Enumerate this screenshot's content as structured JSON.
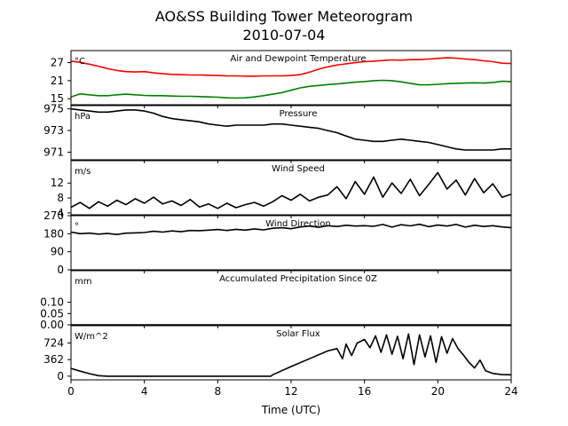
{
  "figure": {
    "title_line1": "AO&SS Building Tower Meteorogram",
    "title_line2": "2010-07-04",
    "xlabel": "Time (UTC)"
  },
  "chart_data": [
    {
      "type": "line",
      "title": "Air and Dewpoint Temperature",
      "unit": "°C",
      "xlim": [
        0,
        24
      ],
      "ylim": [
        13,
        31
      ],
      "yticks": [
        15,
        21,
        27
      ],
      "ytick_labels": [
        "15",
        "21",
        "27"
      ],
      "xticks": [
        0,
        4,
        8,
        12,
        16,
        20,
        24
      ],
      "xtick_labels": [
        "0",
        "4",
        "8",
        "12",
        "16",
        "20",
        "24"
      ],
      "series": [
        {
          "color": "#ff0000",
          "x": [
            0,
            0.5,
            1,
            1.5,
            2,
            2.5,
            3,
            3.5,
            4,
            4.5,
            5,
            5.5,
            6,
            6.5,
            7,
            7.5,
            8,
            8.5,
            9,
            9.5,
            10,
            10.5,
            11,
            11.5,
            12,
            12.5,
            13,
            13.5,
            14,
            14.5,
            15,
            15.5,
            16,
            16.5,
            17,
            17.5,
            18,
            18.5,
            19,
            19.5,
            20,
            20.5,
            21,
            21.5,
            22,
            22.5,
            23,
            23.5,
            24
          ],
          "values": [
            27.5,
            27.1,
            26.5,
            25.8,
            25.0,
            24.4,
            24.0,
            23.9,
            24.0,
            23.6,
            23.3,
            23.1,
            23.0,
            22.9,
            22.9,
            22.8,
            22.7,
            22.6,
            22.6,
            22.5,
            22.5,
            22.6,
            22.6,
            22.6,
            22.7,
            23.0,
            23.8,
            24.8,
            25.6,
            26.2,
            26.6,
            27.0,
            27.3,
            27.5,
            27.7,
            27.9,
            27.8,
            28.0,
            28.0,
            28.2,
            28.4,
            28.6,
            28.5,
            28.2,
            28.0,
            27.6,
            27.3,
            26.8,
            26.7
          ]
        },
        {
          "color": "#008000",
          "x": [
            0,
            0.5,
            1,
            1.5,
            2,
            2.5,
            3,
            3.5,
            4,
            4.5,
            5,
            5.5,
            6,
            6.5,
            7,
            7.5,
            8,
            8.5,
            9,
            9.5,
            10,
            10.5,
            11,
            11.5,
            12,
            12.5,
            13,
            13.5,
            14,
            14.5,
            15,
            15.5,
            16,
            16.5,
            17,
            17.5,
            18,
            18.5,
            19,
            19.5,
            20,
            20.5,
            21,
            21.5,
            22,
            22.5,
            23,
            23.5,
            24
          ],
          "values": [
            15.6,
            16.6,
            16.3,
            16.0,
            16.0,
            16.3,
            16.5,
            16.3,
            16.1,
            16.0,
            16.0,
            15.9,
            15.8,
            15.8,
            15.7,
            15.6,
            15.5,
            15.3,
            15.2,
            15.3,
            15.6,
            16.0,
            16.5,
            17.0,
            17.8,
            18.6,
            19.1,
            19.4,
            19.7,
            19.9,
            20.2,
            20.5,
            20.7,
            21.0,
            21.1,
            21.0,
            20.6,
            20.1,
            19.6,
            19.6,
            19.8,
            20.0,
            20.1,
            20.2,
            20.3,
            20.2,
            20.4,
            20.8,
            20.7
          ]
        }
      ]
    },
    {
      "type": "line",
      "title": "Pressure",
      "unit": "hPa",
      "xlim": [
        0,
        24
      ],
      "ylim": [
        970.3,
        975.3
      ],
      "yticks": [
        971,
        973,
        975
      ],
      "ytick_labels": [
        "971",
        "973",
        "975"
      ],
      "series": [
        {
          "color": "#000000",
          "x": [
            0,
            0.5,
            1,
            1.5,
            2,
            2.5,
            3,
            3.5,
            4,
            4.5,
            5,
            5.5,
            6,
            6.5,
            7,
            7.5,
            8,
            8.5,
            9,
            9.5,
            10,
            10.5,
            11,
            11.5,
            12,
            12.5,
            13,
            13.5,
            14,
            14.5,
            15,
            15.5,
            16,
            16.5,
            17,
            17.5,
            18,
            18.5,
            19,
            19.5,
            20,
            20.5,
            21,
            21.5,
            22,
            22.5,
            23,
            23.5,
            24
          ],
          "values": [
            975.0,
            974.9,
            974.8,
            974.7,
            974.7,
            974.8,
            974.9,
            974.9,
            974.8,
            974.6,
            974.3,
            974.1,
            974.0,
            973.9,
            973.8,
            973.6,
            973.5,
            973.4,
            973.5,
            973.5,
            973.5,
            973.5,
            973.6,
            973.6,
            973.5,
            973.4,
            973.3,
            973.2,
            973.0,
            972.8,
            972.5,
            972.2,
            972.1,
            972.0,
            972.0,
            972.1,
            972.2,
            972.1,
            972.0,
            971.9,
            971.7,
            971.5,
            971.3,
            971.2,
            971.2,
            971.2,
            971.2,
            971.3,
            971.3
          ]
        }
      ]
    },
    {
      "type": "line",
      "title": "Wind Speed",
      "unit": "m/s",
      "xlim": [
        0,
        24
      ],
      "ylim": [
        3.5,
        18
      ],
      "yticks": [
        4,
        8,
        12
      ],
      "ytick_labels": [
        "4",
        "8",
        "12"
      ],
      "series": [
        {
          "color": "#000000",
          "x": [
            0,
            0.5,
            1,
            1.5,
            2,
            2.5,
            3,
            3.5,
            4,
            4.5,
            5,
            5.5,
            6,
            6.5,
            7,
            7.5,
            8,
            8.5,
            9,
            9.5,
            10,
            10.5,
            11,
            11.5,
            12,
            12.5,
            13,
            13.5,
            14,
            14.5,
            15,
            15.5,
            16,
            16.5,
            17,
            17.5,
            18,
            18.5,
            19,
            19.5,
            20,
            20.5,
            21,
            21.5,
            22,
            22.5,
            23,
            23.5,
            24
          ],
          "values": [
            5.5,
            6.8,
            5.2,
            7.0,
            5.8,
            7.4,
            6.2,
            7.8,
            6.6,
            8.2,
            6.4,
            7.2,
            6.0,
            7.6,
            5.6,
            6.4,
            5.2,
            6.6,
            5.4,
            6.2,
            6.8,
            5.8,
            7.0,
            8.6,
            7.4,
            9.0,
            7.2,
            8.2,
            8.8,
            11.0,
            7.8,
            12.4,
            9.0,
            13.6,
            8.2,
            12.0,
            9.2,
            13.0,
            8.6,
            11.6,
            14.8,
            10.4,
            12.8,
            8.8,
            13.2,
            9.4,
            11.8,
            8.2,
            9.0
          ]
        }
      ]
    },
    {
      "type": "line",
      "title": "Wind Direction",
      "unit": "°",
      "xlim": [
        0,
        24
      ],
      "ylim": [
        0,
        270
      ],
      "yticks": [
        0,
        90,
        180,
        270
      ],
      "ytick_labels": [
        "0",
        "90",
        "180",
        "270"
      ],
      "series": [
        {
          "color": "#000000",
          "x": [
            0,
            0.5,
            1,
            1.5,
            2,
            2.5,
            3,
            3.5,
            4,
            4.5,
            5,
            5.5,
            6,
            6.5,
            7,
            7.5,
            8,
            8.5,
            9,
            9.5,
            10,
            10.5,
            11,
            11.5,
            12,
            12.5,
            13,
            13.5,
            14,
            14.5,
            15,
            15.5,
            16,
            16.5,
            17,
            17.5,
            18,
            18.5,
            19,
            19.5,
            20,
            20.5,
            21,
            21.5,
            22,
            22.5,
            23,
            23.5,
            24
          ],
          "values": [
            188,
            180,
            183,
            178,
            181,
            176,
            183,
            184,
            186,
            192,
            188,
            194,
            190,
            196,
            195,
            198,
            201,
            196,
            202,
            198,
            204,
            199,
            207,
            210,
            205,
            214,
            218,
            212,
            220,
            216,
            222,
            218,
            220,
            217,
            226,
            213,
            225,
            219,
            227,
            215,
            223,
            218,
            226,
            213,
            222,
            216,
            220,
            214,
            210
          ]
        }
      ]
    },
    {
      "type": "line",
      "title": "Accumulated Precipitation Since 0Z",
      "unit": "mm",
      "xlim": [
        0,
        24
      ],
      "ylim": [
        0,
        0.24
      ],
      "yticks": [
        0,
        0.05,
        0.1
      ],
      "ytick_labels": [
        "0.00",
        "0.05",
        "0.10"
      ],
      "series": [
        {
          "color": "#000000",
          "x": [
            0,
            24
          ],
          "values": [
            0,
            0
          ]
        }
      ]
    },
    {
      "type": "line",
      "title": "Solar Flux",
      "unit": "W/m^2",
      "xlim": [
        0,
        24
      ],
      "ylim": [
        -80,
        1100
      ],
      "yticks": [
        0,
        362,
        724
      ],
      "ytick_labels": [
        "0",
        "362",
        "724"
      ],
      "series": [
        {
          "color": "#000000",
          "x": [
            0,
            0.5,
            1,
            1.5,
            2,
            3,
            4,
            6,
            8,
            10,
            10.9,
            11,
            12,
            13,
            14,
            14.5,
            14.8,
            15,
            15.3,
            15.6,
            16,
            16.3,
            16.6,
            16.9,
            17.2,
            17.5,
            17.8,
            18.1,
            18.4,
            18.7,
            19,
            19.3,
            19.6,
            19.9,
            20.2,
            20.5,
            20.8,
            21.1,
            21.4,
            21.7,
            22,
            22.3,
            22.6,
            23,
            23.5,
            24
          ],
          "values": [
            170,
            110,
            55,
            10,
            0,
            0,
            0,
            0,
            0,
            0,
            0,
            30,
            210,
            380,
            550,
            600,
            380,
            700,
            450,
            720,
            800,
            620,
            880,
            520,
            900,
            480,
            870,
            380,
            920,
            250,
            900,
            420,
            880,
            300,
            860,
            500,
            820,
            600,
            460,
            300,
            180,
            350,
            120,
            60,
            35,
            30
          ]
        }
      ]
    }
  ]
}
